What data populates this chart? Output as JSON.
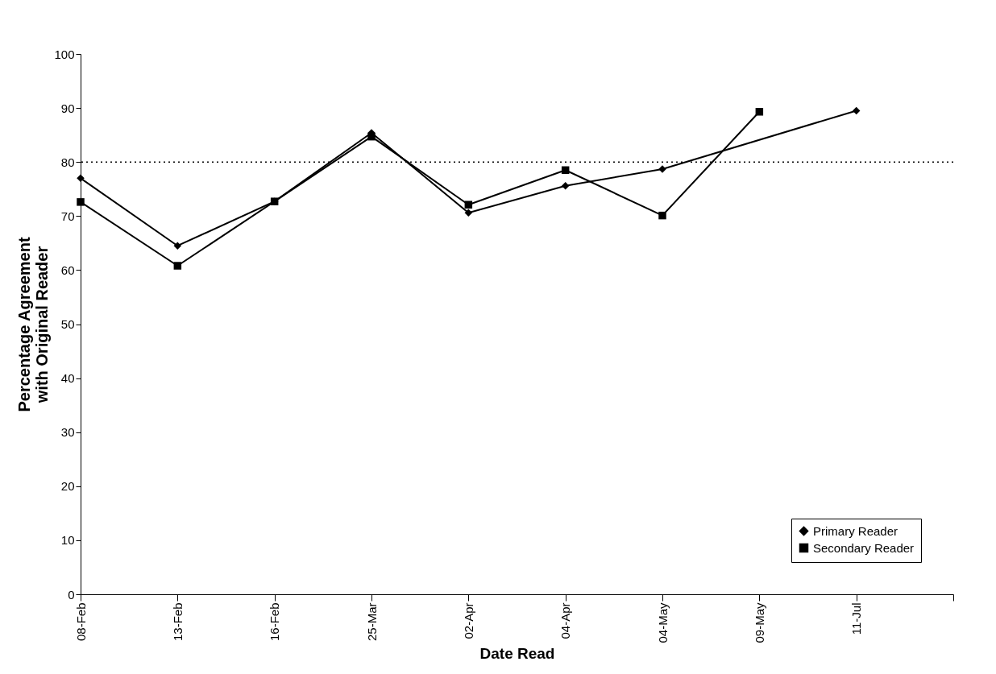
{
  "chart_data": {
    "type": "line",
    "xlabel": "Date Read",
    "ylabel": "Percentage Agreement\nwith Original Reader",
    "categories": [
      "08-Feb",
      "13-Feb",
      "16-Feb",
      "25-Mar",
      "02-Apr",
      "04-Apr",
      "04-May",
      "09-May",
      "11-Jul",
      null
    ],
    "series": [
      {
        "name": "Primary Reader",
        "color": "#000000",
        "marker": "diamond",
        "values": [
          77,
          64.5,
          72.7,
          85.4,
          70.6,
          75.6,
          78.7,
          null,
          89.5,
          null
        ]
      },
      {
        "name": "Secondary Reader",
        "color": "#000000",
        "marker": "square",
        "values": [
          72.6,
          60.8,
          72.7,
          84.7,
          72.1,
          78.5,
          70.1,
          89.3,
          null,
          null
        ]
      }
    ],
    "ylim": [
      0,
      100
    ],
    "yticks": [
      0,
      10,
      20,
      30,
      40,
      50,
      60,
      70,
      80,
      90,
      100
    ],
    "ref_lines": [
      {
        "axis": "y",
        "value": 80,
        "line_style": "dotted",
        "color": "#000000"
      }
    ],
    "legend": "bottom right",
    "grid": false,
    "line_style": "solid"
  }
}
